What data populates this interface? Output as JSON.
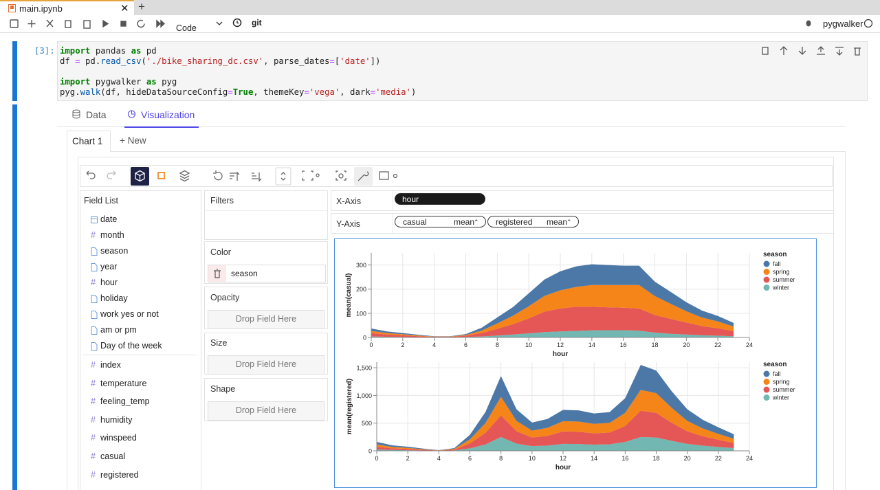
{
  "tab": {
    "title": "main.ipynb",
    "new": "+"
  },
  "toolbar": {
    "cell_type": "Code",
    "git": "git",
    "kernel": "pygwalker"
  },
  "cell": {
    "prompt": "[3]:",
    "code": [
      [
        [
          {
            "text": "import",
            "color": "#008000",
            "bold": true
          },
          {
            "text": " pandas "
          },
          {
            "text": "as",
            "color": "#008000",
            "bold": true
          },
          {
            "text": " pd"
          }
        ],
        [
          {
            "text": "df "
          },
          {
            "text": "=",
            "color": "#aa22ff"
          },
          {
            "text": " pd."
          },
          {
            "text": "read_csv",
            "color": "#0055aa"
          },
          {
            "text": "("
          },
          {
            "text": "'./bike_sharing_dc.csv'",
            "color": "#ba2121"
          },
          {
            "text": ", parse_dates"
          },
          {
            "text": "=",
            "color": "#aa22ff"
          },
          {
            "text": "["
          },
          {
            "text": "'date'",
            "color": "#ba2121"
          },
          {
            "text": "])"
          }
        ]
      ],
      [
        [
          {
            "text": "import",
            "color": "#008000",
            "bold": true
          },
          {
            "text": " pygwalker "
          },
          {
            "text": "as",
            "color": "#008000",
            "bold": true
          },
          {
            "text": " pyg"
          }
        ],
        [
          {
            "text": "pyg."
          },
          {
            "text": "walk",
            "color": "#0055aa"
          },
          {
            "text": "(df, hideDataSourceConfig"
          },
          {
            "text": "=",
            "color": "#aa22ff"
          },
          {
            "text": "True",
            "color": "#008000",
            "bold": true
          },
          {
            "text": ", themeKey"
          },
          {
            "text": "=",
            "color": "#aa22ff"
          },
          {
            "text": "'vega'",
            "color": "#ba2121"
          },
          {
            "text": ", dark"
          },
          {
            "text": "=",
            "color": "#aa22ff"
          },
          {
            "text": "'media'",
            "color": "#ba2121"
          },
          {
            "text": ")"
          }
        ]
      ]
    ]
  },
  "walker": {
    "tabs": [
      "Data",
      "Visualization"
    ],
    "active_tab": 1,
    "chart_tabs": [
      "Chart 1",
      "+ New"
    ],
    "field_list": {
      "title": "Field List",
      "number_icon": "#",
      "dimensions": [
        {
          "name": "date",
          "kind": "date"
        },
        {
          "name": "month",
          "kind": "number"
        },
        {
          "name": "season",
          "kind": "text"
        },
        {
          "name": "year",
          "kind": "text"
        },
        {
          "name": "hour",
          "kind": "number"
        },
        {
          "name": "holiday",
          "kind": "text"
        },
        {
          "name": "work yes or not",
          "kind": "text"
        },
        {
          "name": "am or pm",
          "kind": "text"
        },
        {
          "name": "Day of the week",
          "kind": "text"
        }
      ],
      "measures": [
        "index",
        "temperature",
        "feeling_temp",
        "humidity",
        "winspeed",
        "casual",
        "registered"
      ]
    },
    "filters": {
      "title": "Filters"
    },
    "drop_hint": "Drop Field Here",
    "color": {
      "title": "Color",
      "field": "season"
    },
    "opacity": {
      "title": "Opacity"
    },
    "size": {
      "title": "Size"
    },
    "shape": {
      "title": "Shape"
    },
    "x_axis": {
      "label": "X-Axis",
      "fields": [
        {
          "name": "hour"
        }
      ]
    },
    "y_axis": {
      "label": "Y-Axis",
      "fields": [
        {
          "name": "casual",
          "aggregate": "mean"
        },
        {
          "name": "registered",
          "aggregate": "mean"
        }
      ]
    }
  },
  "chart_data": [
    {
      "type": "area",
      "stacked": true,
      "grid": true,
      "legend": "right",
      "legend_title": "season",
      "x_label": "hour",
      "y_label": "mean(casual)",
      "x": [
        0,
        1,
        2,
        3,
        4,
        5,
        6,
        7,
        8,
        9,
        10,
        11,
        12,
        13,
        14,
        15,
        16,
        17,
        18,
        19,
        20,
        21,
        22,
        23
      ],
      "xlim": [
        0,
        24
      ],
      "xticks": [
        0,
        2,
        4,
        6,
        8,
        10,
        12,
        14,
        16,
        18,
        20,
        22,
        24
      ],
      "ylim": [
        0,
        350
      ],
      "yticks": [
        0,
        100,
        200,
        300
      ],
      "series": [
        {
          "name": "fall",
          "color": "#4c78a8",
          "values": [
            10,
            7,
            5,
            3,
            1,
            1,
            4,
            12,
            25,
            36,
            54,
            68,
            79,
            85,
            86,
            83,
            80,
            80,
            60,
            50,
            38,
            29,
            23,
            15
          ]
        },
        {
          "name": "spring",
          "color": "#f58518",
          "values": [
            9,
            6,
            4,
            3,
            1,
            1,
            3,
            10,
            22,
            35,
            50,
            65,
            75,
            82,
            90,
            92,
            94,
            97,
            78,
            62,
            46,
            35,
            28,
            19
          ]
        },
        {
          "name": "summer",
          "color": "#e45756",
          "values": [
            14,
            9,
            7,
            4,
            2,
            2,
            5,
            14,
            28,
            43,
            62,
            85,
            95,
            100,
            98,
            95,
            93,
            92,
            73,
            62,
            50,
            38,
            31,
            21
          ]
        },
        {
          "name": "winter",
          "color": "#72b7b2",
          "values": [
            4,
            3,
            2,
            1,
            1,
            1,
            2,
            4,
            8,
            12,
            17,
            22,
            25,
            27,
            29,
            30,
            30,
            28,
            20,
            15,
            12,
            9,
            7,
            5
          ]
        }
      ]
    },
    {
      "type": "area",
      "stacked": true,
      "grid": true,
      "legend": "right",
      "legend_title": "season",
      "x_label": "hour",
      "y_label": "mean(registered)",
      "x": [
        0,
        1,
        2,
        3,
        4,
        5,
        6,
        7,
        8,
        9,
        10,
        11,
        12,
        13,
        14,
        15,
        16,
        17,
        18,
        19,
        20,
        21,
        22,
        23
      ],
      "xlim": [
        0,
        24
      ],
      "xticks": [
        0,
        2,
        4,
        6,
        8,
        10,
        12,
        14,
        16,
        18,
        20,
        22,
        24
      ],
      "ylim": [
        0,
        1600
      ],
      "yticks": [
        0,
        500,
        {
          "value": 1000,
          "label": "1,000"
        },
        {
          "value": 1500,
          "label": "1,500"
        }
      ],
      "series": [
        {
          "name": "fall",
          "color": "#4c78a8",
          "values": [
            47,
            30,
            22,
            12,
            3,
            15,
            83,
            200,
            375,
            210,
            145,
            160,
            205,
            203,
            188,
            195,
            265,
            450,
            410,
            300,
            210,
            157,
            120,
            83
          ]
        },
        {
          "name": "spring",
          "color": "#f58518",
          "values": [
            40,
            25,
            19,
            10,
            3,
            13,
            72,
            175,
            335,
            185,
            125,
            145,
            185,
            183,
            170,
            175,
            235,
            375,
            355,
            270,
            187,
            140,
            105,
            75
          ]
        },
        {
          "name": "summer",
          "color": "#e45756",
          "values": [
            50,
            30,
            23,
            12,
            4,
            15,
            90,
            210,
            390,
            225,
            155,
            175,
            225,
            222,
            205,
            212,
            290,
            475,
            445,
            325,
            228,
            170,
            130,
            92
          ]
        },
        {
          "name": "winter",
          "color": "#72b7b2",
          "values": [
            25,
            15,
            11,
            6,
            2,
            7,
            45,
            115,
            250,
            130,
            85,
            95,
            125,
            122,
            112,
            118,
            160,
            250,
            240,
            180,
            125,
            93,
            70,
            50
          ]
        }
      ]
    }
  ]
}
